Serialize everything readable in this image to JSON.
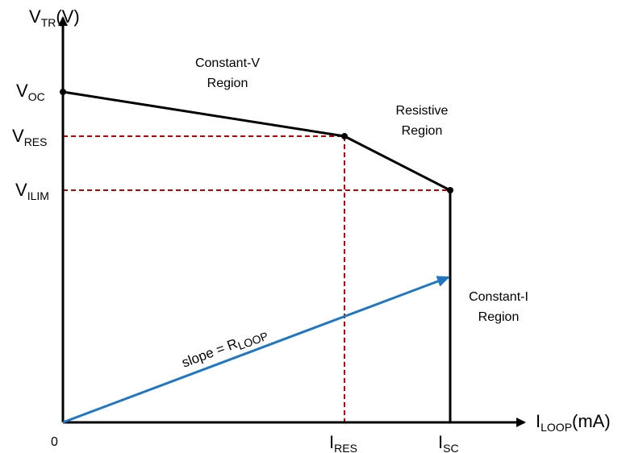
{
  "axes": {
    "y_label": {
      "main": "V",
      "sub": "TR",
      "unit": "(V)"
    },
    "x_label": {
      "main": "I",
      "sub": "LOOP",
      "unit": "(mA)"
    },
    "origin_label": "0"
  },
  "y_ticks": [
    {
      "main": "V",
      "sub": "OC"
    },
    {
      "main": "V",
      "sub": "RES"
    },
    {
      "main": "V",
      "sub": "ILIM"
    }
  ],
  "x_ticks": [
    {
      "main": "I",
      "sub": "RES"
    },
    {
      "main": "I",
      "sub": "SC"
    }
  ],
  "regions": {
    "constant_v": {
      "line1": "Constant-V",
      "line2": "Region"
    },
    "resistive": {
      "line1": "Resistive",
      "line2": "Region"
    },
    "constant_i": {
      "line1": "Constant-I",
      "line2": "Region"
    }
  },
  "slope_label": {
    "main": "slope = R",
    "sub": "LOOP"
  },
  "colors": {
    "curve": "#000000",
    "guide": "#c00000",
    "slope_arrow": "#1f77c4",
    "axis": "#000000"
  }
}
